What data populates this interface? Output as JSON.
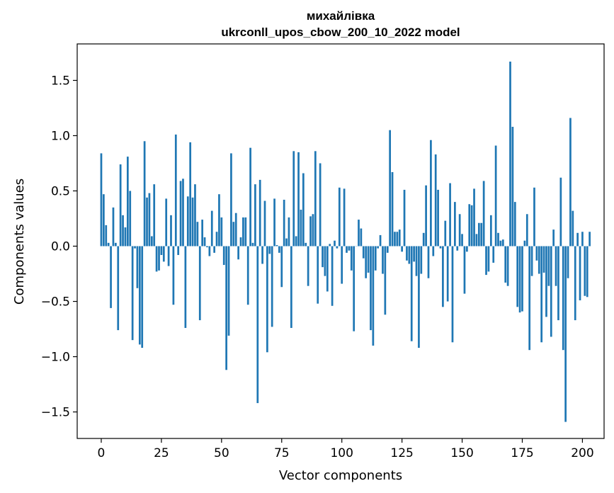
{
  "chart_data": {
    "type": "bar",
    "title": "михайлівка",
    "subtitle": "ukrconll_upos_cbow_200_10_2022 model",
    "xlabel": "Vector components",
    "ylabel": "Components values",
    "xlim": [
      -10,
      209
    ],
    "ylim": [
      -1.74,
      1.83
    ],
    "xticks": [
      0,
      25,
      50,
      75,
      100,
      125,
      150,
      175,
      200
    ],
    "yticks": [
      -1.5,
      -1.0,
      -0.5,
      0.0,
      0.5,
      1.0,
      1.5
    ],
    "ytick_labels": [
      "−1.5",
      "−1.0",
      "−0.5",
      "0.0",
      "0.5",
      "1.0",
      "1.5"
    ],
    "bar_color": "#1f77b4",
    "values": [
      0.84,
      0.47,
      0.19,
      0.03,
      -0.56,
      0.35,
      0.03,
      -0.76,
      0.74,
      0.28,
      0.17,
      0.81,
      0.5,
      -0.85,
      -0.02,
      -0.38,
      -0.89,
      -0.92,
      0.95,
      0.44,
      0.48,
      0.09,
      0.56,
      -0.23,
      -0.22,
      -0.08,
      -0.14,
      0.43,
      -0.18,
      0.28,
      -0.53,
      1.01,
      -0.08,
      0.59,
      0.61,
      -0.74,
      0.45,
      0.94,
      0.44,
      0.56,
      0.22,
      -0.67,
      0.24,
      0.08,
      -0.01,
      -0.09,
      0.32,
      -0.06,
      0.13,
      0.47,
      0.26,
      -0.17,
      -1.12,
      -0.81,
      0.84,
      0.22,
      0.3,
      -0.12,
      0.08,
      0.26,
      0.26,
      -0.53,
      0.89,
      0.03,
      0.56,
      -1.42,
      0.6,
      -0.16,
      0.41,
      -0.96,
      -0.07,
      -0.73,
      0.43,
      0.01,
      -0.06,
      -0.37,
      0.42,
      0.07,
      0.26,
      -0.74,
      0.86,
      0.09,
      0.85,
      0.33,
      0.66,
      0.03,
      -0.36,
      0.27,
      0.29,
      0.86,
      -0.52,
      0.75,
      -0.19,
      -0.27,
      -0.41,
      0.02,
      -0.54,
      0.05,
      -0.02,
      0.53,
      -0.34,
      0.52,
      -0.06,
      -0.04,
      -0.22,
      -0.77,
      0.0,
      0.24,
      0.16,
      -0.11,
      -0.29,
      -0.24,
      -0.76,
      -0.9,
      -0.22,
      -0.02,
      0.1,
      -0.25,
      -0.62,
      -0.06,
      1.05,
      0.67,
      0.13,
      0.13,
      0.15,
      -0.05,
      0.51,
      -0.13,
      -0.16,
      -0.86,
      -0.14,
      -0.27,
      -0.92,
      -0.25,
      0.12,
      0.55,
      -0.29,
      0.96,
      -0.09,
      0.83,
      0.51,
      -0.02,
      -0.55,
      0.23,
      -0.5,
      0.57,
      -0.87,
      0.4,
      -0.04,
      0.29,
      0.11,
      -0.43,
      -0.05,
      0.38,
      0.37,
      0.52,
      0.11,
      0.21,
      0.21,
      0.59,
      -0.26,
      -0.23,
      0.28,
      -0.15,
      0.91,
      0.12,
      0.05,
      0.06,
      -0.33,
      -0.36,
      1.67,
      1.08,
      0.4,
      -0.55,
      -0.6,
      -0.59,
      0.05,
      0.29,
      -0.94,
      -0.27,
      0.53,
      -0.13,
      -0.25,
      -0.87,
      -0.24,
      -0.64,
      -0.36,
      -0.82,
      0.15,
      -0.36,
      -0.67,
      0.62,
      -0.94,
      -1.59,
      -0.29,
      1.16,
      0.32,
      -0.67,
      0.12,
      -0.49,
      0.13,
      -0.45,
      -0.46,
      0.13
    ]
  }
}
